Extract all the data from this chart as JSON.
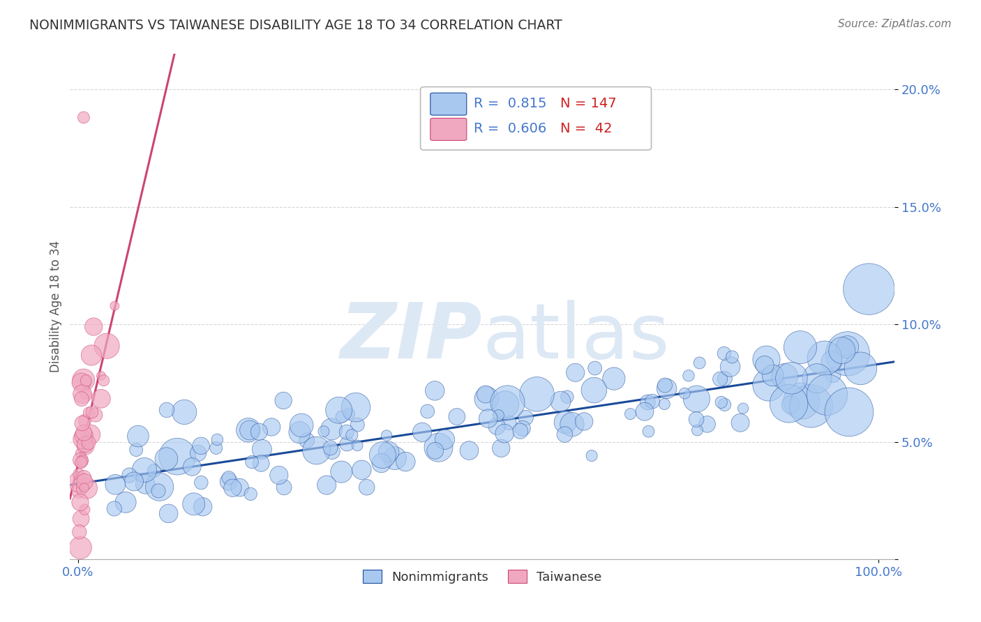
{
  "title": "NONIMMIGRANTS VS TAIWANESE DISABILITY AGE 18 TO 34 CORRELATION CHART",
  "source": "Source: ZipAtlas.com",
  "ylabel_label": "Disability Age 18 to 34",
  "watermark_zip": "ZIP",
  "watermark_atlas": "atlas",
  "blue_R": 0.815,
  "blue_N": 147,
  "pink_R": 0.606,
  "pink_N": 42,
  "xlim": [
    -0.01,
    1.02
  ],
  "ylim": [
    0.0,
    0.215
  ],
  "ytick_positions": [
    0.0,
    0.05,
    0.1,
    0.15,
    0.2
  ],
  "ytick_labels": [
    "",
    "5.0%",
    "10.0%",
    "15.0%",
    "20.0%"
  ],
  "blue_color": "#a8c8f0",
  "blue_line_color": "#1a4a99",
  "pink_color": "#f0a8c0",
  "pink_line_color": "#cc4477",
  "legend_blue_label": "Nonimmigrants",
  "legend_pink_label": "Taiwanese",
  "title_color": "#333333",
  "axis_label_color": "#555555",
  "tick_label_color": "#4477cc",
  "grid_color": "#cccccc",
  "source_color": "#777777",
  "watermark_color": "#dde8f5",
  "seed_blue": 42,
  "seed_pink": 7
}
